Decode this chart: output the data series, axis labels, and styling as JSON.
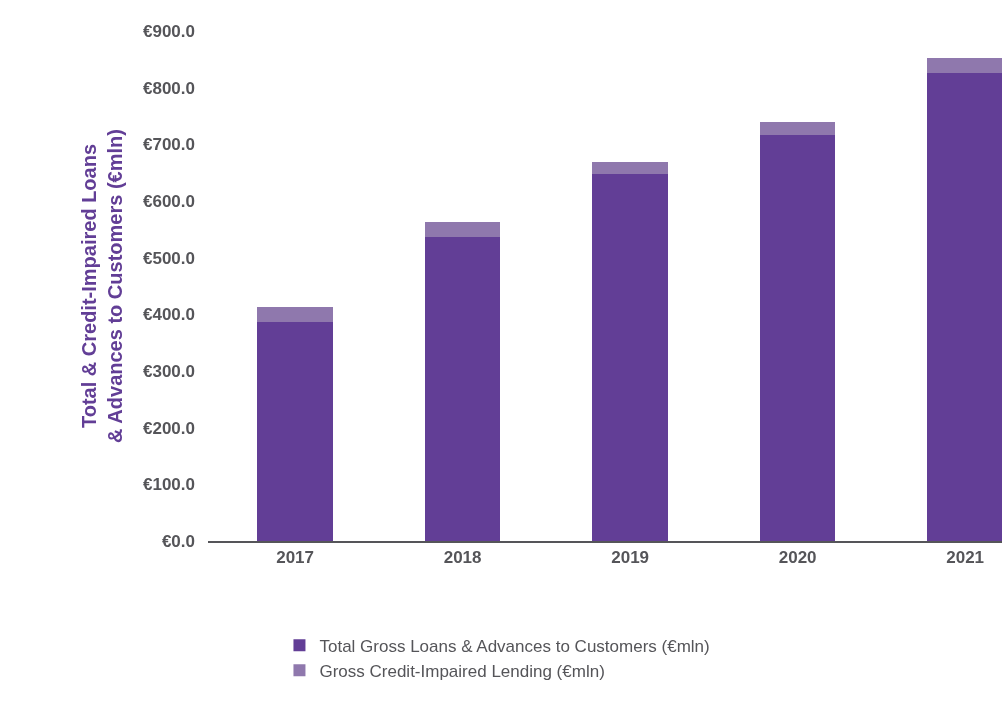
{
  "chart_data": {
    "type": "bar",
    "stacked": true,
    "ylabel": "Total & Credit-Impaired Loans & Advances to Customers (€mln)",
    "categories": [
      "2017",
      "2018",
      "2019",
      "2020",
      "2021"
    ],
    "series": [
      {
        "name": "Total Gross Loans & Advances to Customers (€mln)",
        "color": "#623e96",
        "values": [
          386,
          536,
          647,
          717,
          826
        ]
      },
      {
        "name": "Gross Credit-Impaired Lending (€mln)",
        "color": "#8f78ad",
        "values": [
          27,
          27,
          22,
          22,
          26
        ]
      }
    ],
    "ylim": [
      0,
      900
    ],
    "yticks": [
      {
        "value": 0,
        "label": "€0.0"
      },
      {
        "value": 100,
        "label": "€100.0"
      },
      {
        "value": 200,
        "label": "€200.0"
      },
      {
        "value": 300,
        "label": "€300.0"
      },
      {
        "value": 400,
        "label": "€400.0"
      },
      {
        "value": 500,
        "label": "€500.0"
      },
      {
        "value": 600,
        "label": "€600.0"
      },
      {
        "value": 700,
        "label": "€700.0"
      },
      {
        "value": 800,
        "label": "€800.0"
      },
      {
        "value": 900,
        "label": "€900.0"
      }
    ],
    "legend": "bottom"
  }
}
